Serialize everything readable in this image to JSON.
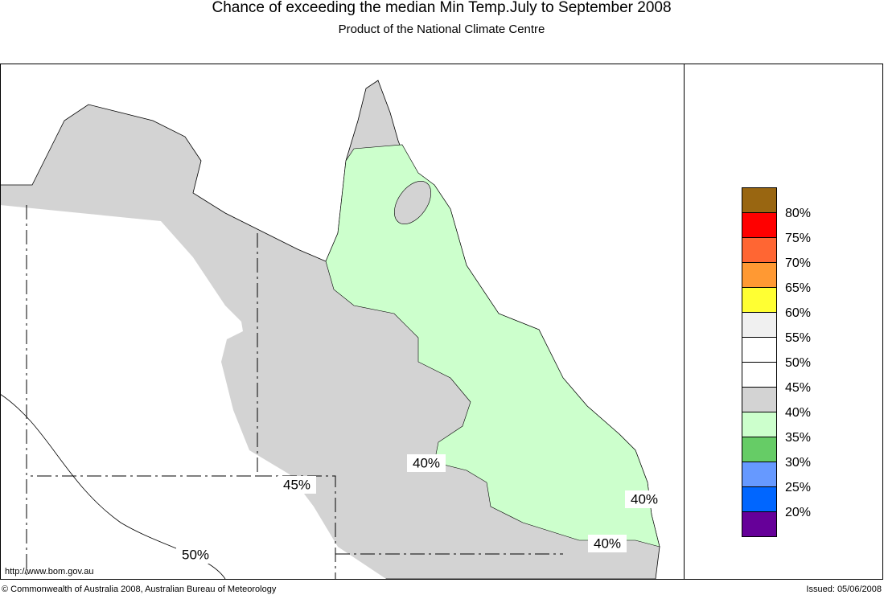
{
  "header": {
    "title": "Chance of exceeding the median Min Temp.July to September 2008",
    "subtitle": "Product of the National Climate Centre"
  },
  "legend": {
    "colors": [
      "#996611",
      "#ff0000",
      "#ff6633",
      "#ff9933",
      "#ffff33",
      "#f0f0f0",
      "#ffffff",
      "#ffffff",
      "#d3d3d3",
      "#ccffcc",
      "#66cc66",
      "#6699ff",
      "#0066ff",
      "#660099"
    ],
    "labels": [
      "80%",
      "75%",
      "70%",
      "65%",
      "60%",
      "55%",
      "50%",
      "45%",
      "40%",
      "35%",
      "30%",
      "25%",
      "20%"
    ]
  },
  "contour_labels": [
    "40%",
    "45%",
    "40%",
    "40%",
    "50%"
  ],
  "footer": {
    "url": "http://www.bom.gov.au",
    "copyright": "© Commonwealth of Australia 2008, Australian Bureau of Meteorology",
    "issued": "Issued: 05/06/2008"
  }
}
